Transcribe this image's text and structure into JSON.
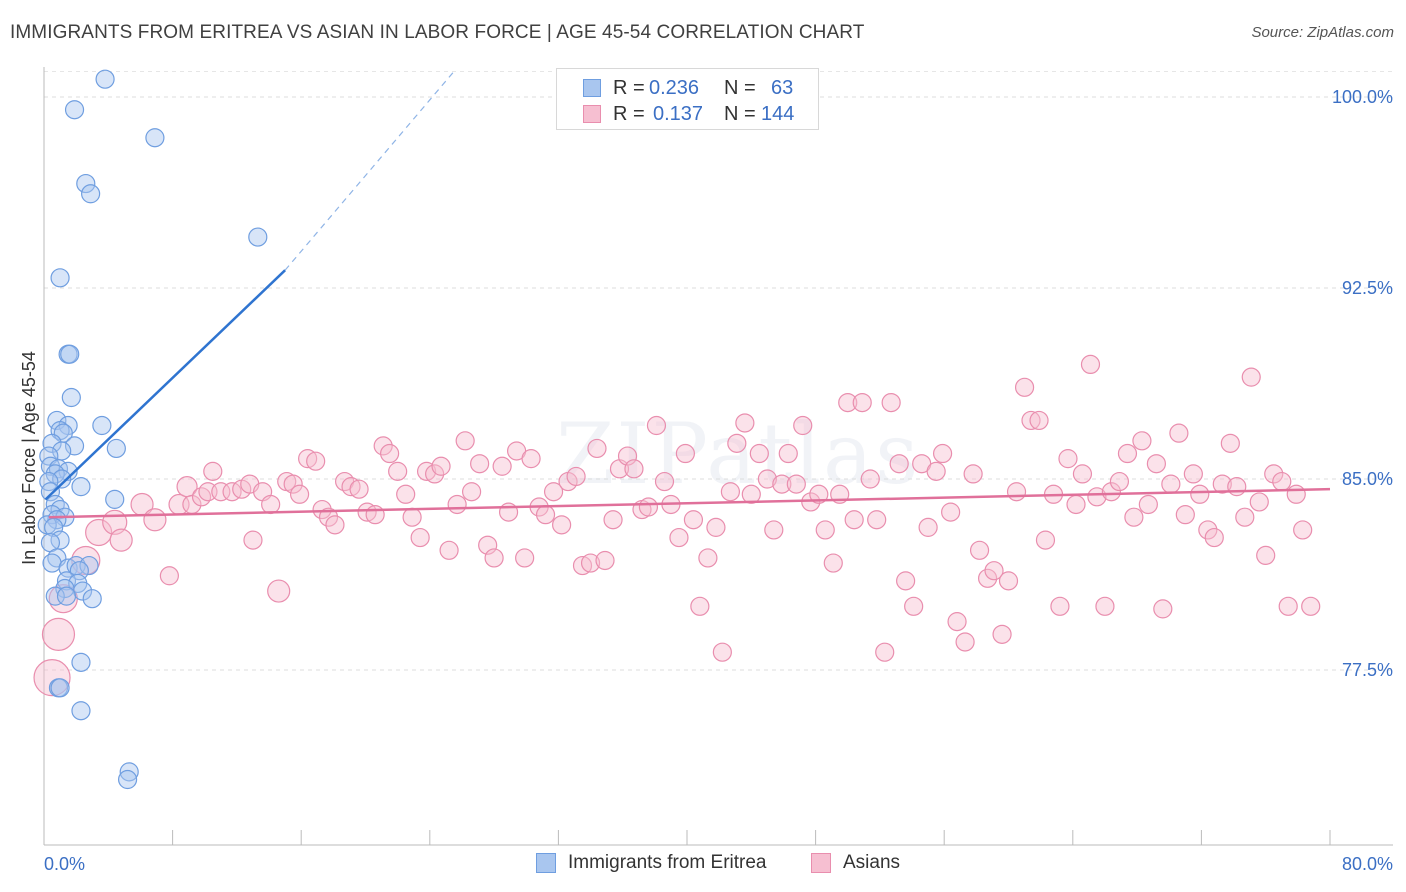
{
  "title": "IMMIGRANTS FROM ERITREA VS ASIAN IN LABOR FORCE | AGE 45-54 CORRELATION CHART",
  "source": "Source: ZipAtlas.com",
  "watermark": "ZIPatlas",
  "legend": {
    "rows": [
      {
        "r_label": "R =",
        "r_value": "0.236",
        "n_label": "N =",
        "n_value": "63",
        "color": "#a9c6ef",
        "border": "#6f9ee0"
      },
      {
        "r_label": "R =",
        "r_value": "0.137",
        "n_label": "N =",
        "n_value": "144",
        "color": "#f6bfd1",
        "border": "#e98eae"
      }
    ]
  },
  "bottom_legend": [
    {
      "label": "Immigrants from Eritrea",
      "color": "#a9c6ef",
      "border": "#6f9ee0"
    },
    {
      "label": "Asians",
      "color": "#f6bfd1",
      "border": "#e98eae"
    }
  ],
  "chart_data": {
    "type": "scatter",
    "title": "IMMIGRANTS FROM ERITREA VS ASIAN IN LABOR FORCE | AGE 45-54 CORRELATION CHART",
    "xlabel": "",
    "ylabel": "In Labor Force | Age 45-54",
    "xlim": [
      0,
      80
    ],
    "ylim": [
      71,
      101
    ],
    "x_tick_labels": [
      "0.0%",
      "80.0%"
    ],
    "y_ticks": [
      77.5,
      85.0,
      92.5,
      100.0
    ],
    "y_tick_labels": [
      "77.5%",
      "85.0%",
      "92.5%",
      "100.0%"
    ],
    "grid": "horizontal dashed",
    "series": [
      {
        "name": "Immigrants from Eritrea",
        "color": "#6f9ee0",
        "fill": "rgba(169,198,239,0.45)",
        "trend": {
          "x": [
            0.1,
            15.0
          ],
          "y": [
            84.2,
            93.2
          ],
          "dashed_to": [
            25.5,
            101.0
          ]
        },
        "points": [
          [
            3.8,
            100.7
          ],
          [
            1.9,
            99.5
          ],
          [
            6.9,
            98.4
          ],
          [
            2.6,
            96.6
          ],
          [
            2.9,
            96.2
          ],
          [
            13.3,
            94.5
          ],
          [
            1.0,
            92.9
          ],
          [
            1.5,
            89.9
          ],
          [
            1.6,
            89.9
          ],
          [
            1.7,
            88.2
          ],
          [
            0.8,
            87.3
          ],
          [
            1.5,
            87.1
          ],
          [
            3.6,
            87.1
          ],
          [
            1.0,
            86.9
          ],
          [
            1.2,
            86.8
          ],
          [
            0.5,
            86.4
          ],
          [
            1.9,
            86.3
          ],
          [
            4.5,
            86.2
          ],
          [
            1.1,
            86.1
          ],
          [
            0.3,
            85.9
          ],
          [
            0.4,
            85.5
          ],
          [
            0.9,
            85.4
          ],
          [
            1.5,
            85.3
          ],
          [
            0.7,
            85.2
          ],
          [
            1.1,
            85.0
          ],
          [
            0.3,
            84.9
          ],
          [
            2.3,
            84.7
          ],
          [
            0.4,
            84.5
          ],
          [
            4.4,
            84.2
          ],
          [
            0.7,
            84.0
          ],
          [
            1.0,
            83.8
          ],
          [
            0.5,
            83.6
          ],
          [
            1.3,
            83.5
          ],
          [
            0.8,
            83.4
          ],
          [
            0.2,
            83.2
          ],
          [
            0.6,
            83.1
          ],
          [
            1.0,
            82.6
          ],
          [
            0.4,
            82.5
          ],
          [
            0.8,
            81.9
          ],
          [
            0.5,
            81.7
          ],
          [
            1.5,
            81.5
          ],
          [
            2.0,
            81.6
          ],
          [
            2.8,
            81.6
          ],
          [
            2.2,
            81.4
          ],
          [
            1.4,
            81.0
          ],
          [
            2.1,
            80.9
          ],
          [
            1.3,
            80.7
          ],
          [
            2.4,
            80.6
          ],
          [
            0.7,
            80.4
          ],
          [
            1.4,
            80.4
          ],
          [
            3.0,
            80.3
          ],
          [
            2.3,
            77.8
          ],
          [
            0.9,
            76.8
          ],
          [
            1.0,
            76.8
          ],
          [
            2.3,
            75.9
          ],
          [
            5.3,
            73.5
          ],
          [
            5.2,
            73.2
          ]
        ]
      },
      {
        "name": "Asians",
        "color": "#e98eae",
        "fill": "rgba(246,191,209,0.45)",
        "trend": {
          "x": [
            0.3,
            80.0
          ],
          "y": [
            83.5,
            84.6
          ]
        },
        "points": [
          [
            0.5,
            77.2,
            18
          ],
          [
            0.9,
            78.9,
            16
          ],
          [
            1.2,
            80.3,
            14
          ],
          [
            2.6,
            81.8,
            14
          ],
          [
            3.4,
            82.9,
            13
          ],
          [
            4.4,
            83.3,
            12
          ],
          [
            4.8,
            82.6,
            11
          ],
          [
            6.1,
            84.0,
            11
          ],
          [
            6.9,
            83.4,
            11
          ],
          [
            7.8,
            81.2,
            9
          ],
          [
            8.4,
            84.0,
            10
          ],
          [
            8.9,
            84.7,
            10
          ],
          [
            9.2,
            84.0,
            9
          ],
          [
            9.8,
            84.3,
            9
          ],
          [
            10.2,
            84.5,
            9
          ],
          [
            10.5,
            85.3,
            9
          ],
          [
            11.0,
            84.5,
            9
          ],
          [
            11.7,
            84.5,
            9
          ],
          [
            12.3,
            84.6,
            9
          ],
          [
            12.8,
            84.8,
            9
          ],
          [
            13.0,
            82.6,
            9
          ],
          [
            13.6,
            84.5,
            9
          ],
          [
            14.1,
            84.0,
            9
          ],
          [
            14.6,
            80.6,
            11
          ],
          [
            15.1,
            84.9,
            9
          ],
          [
            15.5,
            84.8,
            9
          ],
          [
            15.9,
            84.4,
            9
          ],
          [
            16.4,
            85.8,
            9
          ],
          [
            16.9,
            85.7,
            9
          ],
          [
            17.3,
            83.8,
            9
          ],
          [
            17.7,
            83.5,
            9
          ],
          [
            18.1,
            83.2,
            9
          ],
          [
            18.7,
            84.9,
            9
          ],
          [
            19.1,
            84.7,
            9
          ],
          [
            19.6,
            84.6,
            9
          ],
          [
            20.1,
            83.7,
            9
          ],
          [
            20.6,
            83.6,
            9
          ],
          [
            21.1,
            86.3,
            9
          ],
          [
            21.5,
            86.0,
            9
          ],
          [
            22.0,
            85.3,
            9
          ],
          [
            22.5,
            84.4,
            9
          ],
          [
            22.9,
            83.5,
            9
          ],
          [
            23.4,
            82.7,
            9
          ],
          [
            23.8,
            85.3,
            9
          ],
          [
            24.3,
            85.2,
            9
          ],
          [
            24.7,
            85.5,
            9
          ],
          [
            25.2,
            82.2,
            9
          ],
          [
            25.7,
            84.0,
            9
          ],
          [
            26.2,
            86.5,
            9
          ],
          [
            26.6,
            84.5,
            9
          ],
          [
            27.1,
            85.6,
            9
          ],
          [
            27.6,
            82.4,
            9
          ],
          [
            28.0,
            81.9,
            9
          ],
          [
            28.5,
            85.5,
            9
          ],
          [
            28.9,
            83.7,
            9
          ],
          [
            29.4,
            86.1,
            9
          ],
          [
            29.9,
            81.9,
            9
          ],
          [
            30.3,
            85.8,
            9
          ],
          [
            30.8,
            83.9,
            9
          ],
          [
            31.2,
            83.6,
            9
          ],
          [
            31.7,
            84.5,
            9
          ],
          [
            32.2,
            83.2,
            9
          ],
          [
            32.6,
            84.9,
            9
          ],
          [
            33.1,
            85.1,
            9
          ],
          [
            33.5,
            81.6,
            9
          ],
          [
            34.0,
            81.7,
            9
          ],
          [
            34.4,
            86.2,
            9
          ],
          [
            34.9,
            81.8,
            9
          ],
          [
            35.4,
            83.4,
            9
          ],
          [
            35.8,
            85.4,
            9
          ],
          [
            36.3,
            85.9,
            9
          ],
          [
            36.7,
            85.4,
            9
          ],
          [
            37.2,
            83.8,
            9
          ],
          [
            37.6,
            83.9,
            9
          ],
          [
            38.1,
            87.1,
            9
          ],
          [
            38.6,
            84.9,
            9
          ],
          [
            39.0,
            84.0,
            9
          ],
          [
            39.5,
            82.7,
            9
          ],
          [
            39.9,
            86.0,
            9
          ],
          [
            40.4,
            83.4,
            9
          ],
          [
            40.8,
            80.0,
            9
          ],
          [
            41.3,
            81.9,
            9
          ],
          [
            41.8,
            83.1,
            9
          ],
          [
            42.2,
            78.2,
            9
          ],
          [
            42.7,
            84.5,
            9
          ],
          [
            43.1,
            86.4,
            9
          ],
          [
            43.6,
            87.2,
            9
          ],
          [
            44.0,
            84.4,
            9
          ],
          [
            44.5,
            86.0,
            9
          ],
          [
            45.0,
            85.0,
            9
          ],
          [
            45.4,
            83.0,
            9
          ],
          [
            45.9,
            84.8,
            9
          ],
          [
            46.3,
            86.0,
            9
          ],
          [
            46.8,
            84.8,
            9
          ],
          [
            47.2,
            87.1,
            9
          ],
          [
            47.7,
            84.1,
            9
          ],
          [
            48.2,
            84.4,
            9
          ],
          [
            48.6,
            83.0,
            9
          ],
          [
            49.1,
            81.7,
            9
          ],
          [
            49.5,
            84.4,
            9
          ],
          [
            50.0,
            88.0,
            9
          ],
          [
            50.4,
            83.4,
            9
          ],
          [
            50.9,
            88.0,
            9
          ],
          [
            51.4,
            85.0,
            9
          ],
          [
            51.8,
            83.4,
            9
          ],
          [
            52.3,
            78.2,
            9
          ],
          [
            52.7,
            88.0,
            9
          ],
          [
            53.2,
            85.6,
            9
          ],
          [
            53.6,
            81.0,
            9
          ],
          [
            54.1,
            80.0,
            9
          ],
          [
            54.6,
            85.6,
            9
          ],
          [
            55.0,
            83.1,
            9
          ],
          [
            55.5,
            85.3,
            9
          ],
          [
            55.9,
            86.0,
            9
          ],
          [
            56.4,
            83.7,
            9
          ],
          [
            56.8,
            79.4,
            9
          ],
          [
            57.3,
            78.6,
            9
          ],
          [
            57.8,
            85.2,
            9
          ],
          [
            58.2,
            82.2,
            9
          ],
          [
            58.7,
            81.1,
            9
          ],
          [
            59.1,
            81.4,
            9
          ],
          [
            59.6,
            78.9,
            9
          ],
          [
            60.0,
            81.0,
            9
          ],
          [
            60.5,
            84.5,
            9
          ],
          [
            61.0,
            88.6,
            9
          ],
          [
            61.4,
            87.3,
            9
          ],
          [
            61.9,
            87.3,
            9
          ],
          [
            62.3,
            82.6,
            9
          ],
          [
            62.8,
            84.4,
            9
          ],
          [
            63.2,
            80.0,
            9
          ],
          [
            63.7,
            85.8,
            9
          ],
          [
            64.2,
            84.0,
            9
          ],
          [
            64.6,
            85.2,
            9
          ],
          [
            65.1,
            89.5,
            9
          ],
          [
            65.5,
            84.3,
            9
          ],
          [
            66.0,
            80.0,
            9
          ],
          [
            66.4,
            84.5,
            9
          ],
          [
            66.9,
            84.9,
            9
          ],
          [
            67.4,
            86.0,
            9
          ],
          [
            67.8,
            83.5,
            9
          ],
          [
            68.3,
            86.5,
            9
          ],
          [
            68.7,
            84.0,
            9
          ],
          [
            69.2,
            85.6,
            9
          ],
          [
            69.6,
            79.9,
            9
          ],
          [
            70.1,
            84.8,
            9
          ],
          [
            70.6,
            86.8,
            9
          ],
          [
            71.0,
            83.6,
            9
          ],
          [
            71.5,
            85.2,
            9
          ],
          [
            71.9,
            84.4,
            9
          ],
          [
            72.4,
            83.0,
            9
          ],
          [
            72.8,
            82.7,
            9
          ],
          [
            73.3,
            84.8,
            9
          ],
          [
            73.8,
            86.4,
            9
          ],
          [
            74.2,
            84.7,
            9
          ],
          [
            74.7,
            83.5,
            9
          ],
          [
            75.1,
            89.0,
            9
          ],
          [
            75.6,
            84.1,
            9
          ],
          [
            76.0,
            82.0,
            9
          ],
          [
            76.5,
            85.2,
            9
          ],
          [
            77.0,
            84.9,
            9
          ],
          [
            77.4,
            80.0,
            9
          ],
          [
            77.9,
            84.4,
            9
          ],
          [
            78.3,
            83.0,
            9
          ],
          [
            78.8,
            80.0,
            9
          ]
        ]
      }
    ]
  },
  "axes": {
    "ylabel": "In Labor Force | Age 45-54",
    "x_left": "0.0%",
    "x_right": "80.0%"
  }
}
